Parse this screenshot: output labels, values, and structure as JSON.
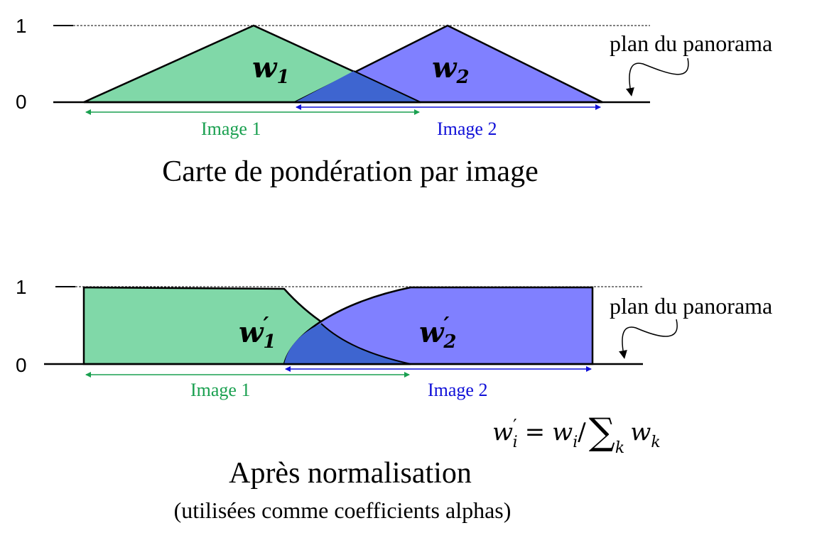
{
  "colors": {
    "green_fill": "#80d8a8",
    "blue_fill": "#8080ff",
    "overlap_fill": "#3e65d0",
    "green_arrow": "#1aa050",
    "blue_arrow": "#1010d8",
    "stroke": "#000000"
  },
  "top_panel": {
    "tick_one": "1",
    "tick_zero": "0",
    "w1_base": "w",
    "w1_sub": "1",
    "w2_base": "w",
    "w2_sub": "2",
    "plane_label": "plan du panorama",
    "image1_label": "Image 1",
    "image2_label": "Image 2",
    "caption": "Carte de pondération par image"
  },
  "bottom_panel": {
    "tick_one": "1",
    "tick_zero": "0",
    "w1_base": "w",
    "w1_prime": "′",
    "w1_sub": "1",
    "w2_base": "w",
    "w2_prime": "′",
    "w2_sub": "2",
    "plane_label": "plan du panorama",
    "image1_label": "Image 1",
    "image2_label": "Image 2",
    "formula": {
      "lhs_base": "w",
      "lhs_prime": "′",
      "lhs_sub": "i",
      "equals": "=",
      "rhs_base": "w",
      "rhs_sub": "i",
      "slash": "/",
      "sum": "∑",
      "sum_sub": "k",
      "term_base": "w",
      "term_sub": "k"
    },
    "caption": "Après normalisation",
    "subcaption": "(utilisées comme coefficients alphas)"
  }
}
